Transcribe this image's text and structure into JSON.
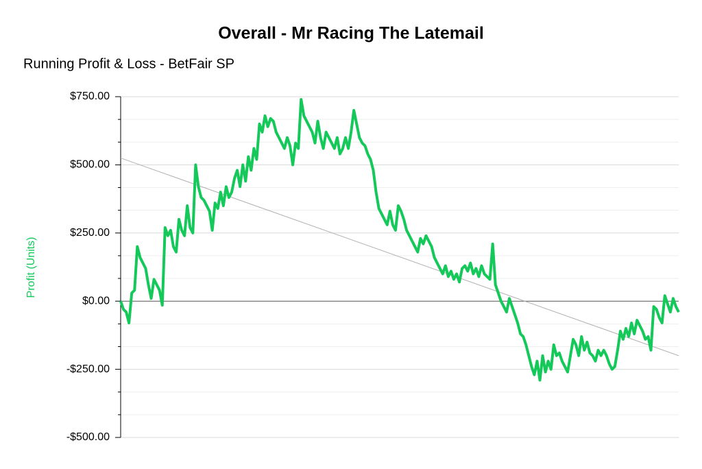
{
  "chart_data": {
    "type": "line",
    "title": "Overall - Mr Racing The Latemail",
    "subtitle": "Running Profit & Loss - BetFair SP",
    "y_label": "Profit (Units)",
    "color": "#14c95a",
    "trend": [
      525,
      -200
    ],
    "trend_color": "#b0b0b0",
    "ylim": [
      -500,
      750
    ],
    "yticks": [
      {
        "value": -500,
        "label": "-$500.00"
      },
      {
        "value": -250,
        "label": "-$250.00"
      },
      {
        "value": 0,
        "label": "$0.00"
      },
      {
        "value": 250,
        "label": "$250.00"
      },
      {
        "value": 500,
        "label": "$500.00"
      },
      {
        "value": 750,
        "label": "$750.00"
      }
    ],
    "minor_yticks": [
      -416.67,
      -333.33,
      -166.67,
      -83.33,
      83.33,
      166.67,
      333.33,
      416.67,
      583.33,
      666.67
    ],
    "grid": true,
    "values": [
      0,
      -30,
      -40,
      -80,
      30,
      40,
      200,
      160,
      140,
      120,
      60,
      10,
      80,
      60,
      40,
      -15,
      270,
      240,
      260,
      200,
      180,
      300,
      260,
      240,
      350,
      270,
      250,
      500,
      420,
      380,
      370,
      350,
      330,
      260,
      360,
      340,
      400,
      350,
      420,
      380,
      400,
      450,
      480,
      420,
      500,
      440,
      530,
      480,
      560,
      520,
      650,
      620,
      680,
      640,
      670,
      660,
      620,
      600,
      580,
      560,
      600,
      570,
      500,
      580,
      560,
      740,
      680,
      660,
      640,
      620,
      580,
      660,
      600,
      560,
      620,
      600,
      580,
      560,
      600,
      540,
      560,
      600,
      560,
      620,
      700,
      650,
      600,
      580,
      570,
      540,
      520,
      480,
      400,
      340,
      320,
      300,
      280,
      330,
      280,
      260,
      350,
      330,
      300,
      260,
      240,
      220,
      200,
      180,
      230,
      210,
      240,
      220,
      200,
      160,
      140,
      120,
      100,
      130,
      90,
      110,
      80,
      100,
      70,
      120,
      130,
      110,
      140,
      100,
      120,
      90,
      130,
      100,
      90,
      80,
      210,
      60,
      30,
      0,
      -20,
      -40,
      10,
      -20,
      -50,
      -80,
      -120,
      -130,
      -160,
      -200,
      -240,
      -270,
      -220,
      -290,
      -200,
      -260,
      -220,
      -250,
      -160,
      -200,
      -190,
      -220,
      -240,
      -260,
      -200,
      -140,
      -160,
      -200,
      -130,
      -180,
      -150,
      -190,
      -200,
      -220,
      -180,
      -200,
      -180,
      -200,
      -230,
      -250,
      -240,
      -180,
      -110,
      -140,
      -100,
      -130,
      -80,
      -120,
      -70,
      -90,
      -110,
      -140,
      -130,
      -180,
      -20,
      -30,
      -60,
      -80,
      20,
      -10,
      -40,
      10,
      -20,
      -40
    ]
  }
}
